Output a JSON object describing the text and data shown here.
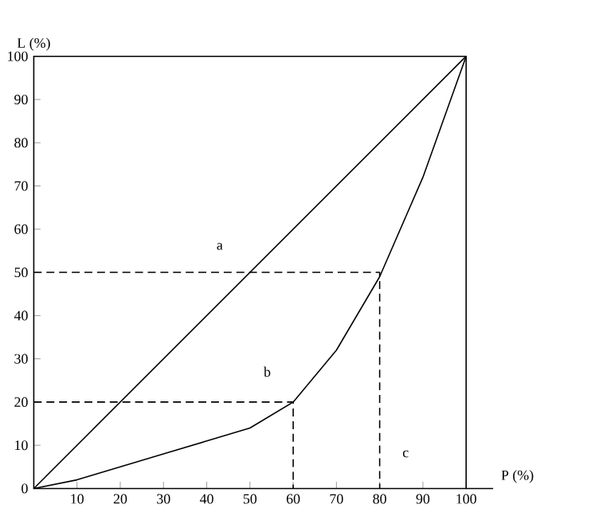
{
  "chart_data": {
    "type": "line",
    "xlabel": "P (%)",
    "ylabel": "L (%)",
    "xlim": [
      0,
      100
    ],
    "ylim": [
      0,
      100
    ],
    "xticks": [
      10,
      20,
      30,
      40,
      50,
      60,
      70,
      80,
      90,
      100
    ],
    "yticks": [
      0,
      10,
      20,
      30,
      40,
      50,
      60,
      70,
      80,
      90,
      100
    ],
    "series": [
      {
        "color": "#000000",
        "line_style": "solid",
        "x": [
          0,
          100
        ],
        "values": [
          0,
          100
        ]
      },
      {
        "color": "#000000",
        "line_style": "solid",
        "x": [
          0,
          10,
          20,
          30,
          40,
          50,
          60,
          70,
          80,
          90,
          95,
          100
        ],
        "values": [
          0,
          2,
          5,
          8,
          11,
          14,
          20,
          32,
          49,
          72,
          86,
          100
        ]
      },
      {
        "color": "#000000",
        "line_style": "dashed",
        "x": [
          0,
          80,
          80
        ],
        "values": [
          50,
          50,
          0
        ]
      },
      {
        "color": "#000000",
        "line_style": "dashed",
        "x": [
          0,
          60,
          60
        ],
        "values": [
          20,
          20,
          0
        ]
      }
    ],
    "annotations": [
      "a",
      "b",
      "c"
    ],
    "marker": "none",
    "grid": false
  }
}
